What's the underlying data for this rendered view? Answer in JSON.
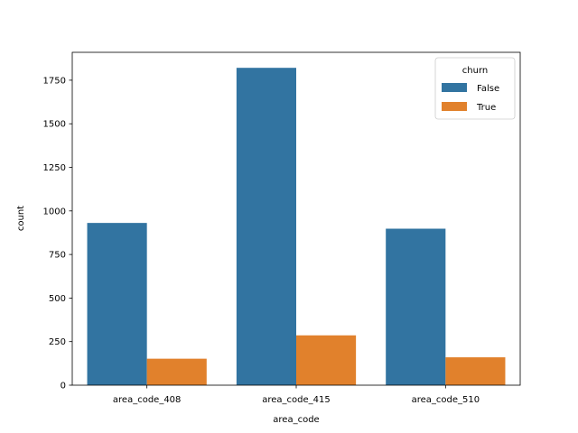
{
  "chart_data": {
    "type": "bar",
    "categories": [
      "area_code_408",
      "area_code_415",
      "area_code_510"
    ],
    "series": [
      {
        "name": "False",
        "values": [
          931,
          1821,
          898
        ],
        "color": "#3274a1"
      },
      {
        "name": "True",
        "values": [
          152,
          286,
          160
        ],
        "color": "#e1812c"
      }
    ],
    "xlabel": "area_code",
    "ylabel": "count",
    "ylim": [
      0,
      1910
    ],
    "yticks": [
      0,
      250,
      500,
      750,
      1000,
      1250,
      1500,
      1750
    ],
    "legend": {
      "title": "churn",
      "placement": "top-right"
    },
    "grid": false
  }
}
